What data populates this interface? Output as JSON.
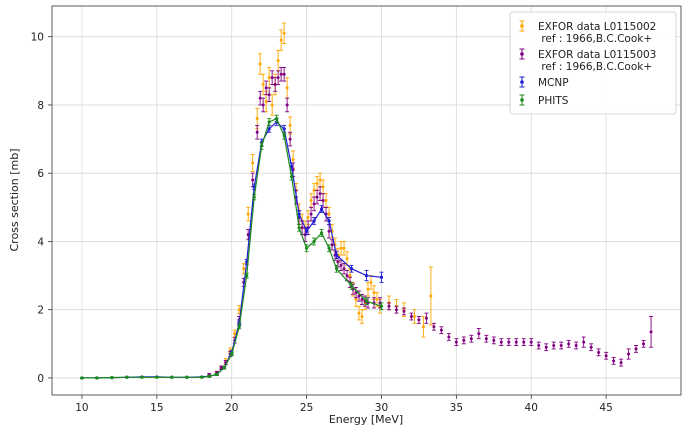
{
  "chart_data": {
    "type": "scatter",
    "title": "",
    "xlabel": "Energy [MeV]",
    "ylabel": "Cross section [mb]",
    "xlim": [
      8,
      50
    ],
    "ylim": [
      -0.5,
      10.9
    ],
    "xticks": [
      10,
      15,
      20,
      25,
      30,
      35,
      40,
      45
    ],
    "yticks": [
      0,
      2,
      4,
      6,
      8,
      10
    ],
    "grid": true,
    "legend_position": "top-right",
    "series": [
      {
        "name": "EXFOR data L0115002\n ref : 1966,B.C.Cook+",
        "color": "#ffa500",
        "style": "errorbar-points",
        "points": [
          [
            18.5,
            0.05,
            0.03
          ],
          [
            19,
            0.15,
            0.05
          ],
          [
            19.3,
            0.3,
            0.05
          ],
          [
            19.6,
            0.5,
            0.07
          ],
          [
            19.9,
            0.8,
            0.08
          ],
          [
            20.2,
            1.3,
            0.1
          ],
          [
            20.5,
            2.0,
            0.12
          ],
          [
            20.8,
            3.2,
            0.15
          ],
          [
            21.1,
            4.8,
            0.2
          ],
          [
            21.4,
            6.3,
            0.25
          ],
          [
            21.7,
            7.6,
            0.3
          ],
          [
            21.9,
            9.2,
            0.3
          ],
          [
            22.1,
            8.6,
            0.3
          ],
          [
            22.3,
            8.1,
            0.3
          ],
          [
            22.5,
            8.8,
            0.3
          ],
          [
            22.7,
            8.0,
            0.3
          ],
          [
            22.9,
            8.6,
            0.3
          ],
          [
            23.1,
            9.3,
            0.3
          ],
          [
            23.3,
            9.9,
            0.3
          ],
          [
            23.5,
            10.1,
            0.3
          ],
          [
            23.7,
            8.5,
            0.3
          ],
          [
            23.9,
            7.4,
            0.25
          ],
          [
            24.1,
            6.4,
            0.25
          ],
          [
            24.3,
            5.5,
            0.2
          ],
          [
            24.5,
            4.9,
            0.2
          ],
          [
            24.7,
            4.6,
            0.2
          ],
          [
            24.9,
            4.4,
            0.2
          ],
          [
            25.1,
            4.7,
            0.2
          ],
          [
            25.3,
            5.2,
            0.2
          ],
          [
            25.5,
            5.5,
            0.2
          ],
          [
            25.7,
            5.7,
            0.2
          ],
          [
            25.9,
            5.8,
            0.2
          ],
          [
            26.1,
            5.6,
            0.2
          ],
          [
            26.3,
            5.2,
            0.2
          ],
          [
            26.5,
            4.8,
            0.2
          ],
          [
            26.7,
            4.3,
            0.2
          ],
          [
            26.9,
            3.9,
            0.2
          ],
          [
            27.1,
            3.6,
            0.2
          ],
          [
            27.3,
            3.8,
            0.2
          ],
          [
            27.5,
            3.8,
            0.2
          ],
          [
            27.7,
            3.5,
            0.2
          ],
          [
            27.9,
            3.0,
            0.2
          ],
          [
            28.1,
            2.6,
            0.2
          ],
          [
            28.3,
            2.3,
            0.2
          ],
          [
            28.5,
            1.9,
            0.2
          ],
          [
            28.7,
            1.8,
            0.2
          ],
          [
            28.9,
            2.2,
            0.2
          ],
          [
            29.1,
            2.6,
            0.2
          ],
          [
            29.3,
            2.8,
            0.2
          ],
          [
            29.5,
            2.5,
            0.2
          ],
          [
            29.7,
            2.3,
            0.2
          ],
          [
            29.9,
            2.1,
            0.2
          ],
          [
            30.5,
            2.2,
            0.2
          ],
          [
            31,
            2.1,
            0.2
          ],
          [
            31.5,
            2.0,
            0.2
          ],
          [
            32.2,
            1.8,
            0.2
          ],
          [
            32.8,
            1.5,
            0.3
          ],
          [
            33.3,
            2.4,
            0.85
          ]
        ]
      },
      {
        "name": "EXFOR data L0115003\n ref : 1966,B.C.Cook+",
        "color": "#800080",
        "style": "errorbar-points",
        "points": [
          [
            18.5,
            0.1,
            0.03
          ],
          [
            19,
            0.15,
            0.04
          ],
          [
            19.3,
            0.3,
            0.05
          ],
          [
            19.6,
            0.45,
            0.06
          ],
          [
            19.9,
            0.7,
            0.07
          ],
          [
            20.2,
            1.1,
            0.08
          ],
          [
            20.5,
            1.7,
            0.1
          ],
          [
            20.8,
            2.8,
            0.12
          ],
          [
            21.1,
            4.2,
            0.15
          ],
          [
            21.4,
            5.8,
            0.2
          ],
          [
            21.7,
            7.2,
            0.2
          ],
          [
            21.9,
            8.2,
            0.2
          ],
          [
            22.1,
            8.0,
            0.2
          ],
          [
            22.3,
            8.5,
            0.2
          ],
          [
            22.5,
            8.3,
            0.2
          ],
          [
            22.7,
            8.8,
            0.2
          ],
          [
            22.9,
            8.6,
            0.2
          ],
          [
            23.1,
            8.8,
            0.2
          ],
          [
            23.3,
            8.9,
            0.2
          ],
          [
            23.5,
            8.9,
            0.2
          ],
          [
            23.7,
            8.0,
            0.2
          ],
          [
            23.9,
            7.0,
            0.2
          ],
          [
            24.1,
            6.1,
            0.2
          ],
          [
            24.3,
            5.3,
            0.2
          ],
          [
            24.5,
            4.7,
            0.2
          ],
          [
            24.7,
            4.4,
            0.2
          ],
          [
            24.9,
            4.2,
            0.2
          ],
          [
            25.1,
            4.4,
            0.2
          ],
          [
            25.3,
            4.8,
            0.2
          ],
          [
            25.5,
            5.1,
            0.2
          ],
          [
            25.7,
            5.3,
            0.2
          ],
          [
            25.9,
            5.4,
            0.2
          ],
          [
            26.1,
            5.2,
            0.2
          ],
          [
            26.3,
            4.8,
            0.2
          ],
          [
            26.5,
            4.3,
            0.2
          ],
          [
            26.7,
            3.9,
            0.15
          ],
          [
            26.9,
            3.6,
            0.15
          ],
          [
            27.1,
            3.4,
            0.15
          ],
          [
            27.3,
            3.3,
            0.15
          ],
          [
            27.5,
            3.2,
            0.15
          ],
          [
            27.7,
            3.0,
            0.15
          ],
          [
            27.9,
            2.8,
            0.15
          ],
          [
            28.1,
            2.6,
            0.15
          ],
          [
            28.3,
            2.5,
            0.15
          ],
          [
            28.5,
            2.4,
            0.15
          ],
          [
            28.7,
            2.3,
            0.15
          ],
          [
            28.9,
            2.25,
            0.15
          ],
          [
            29.1,
            2.2,
            0.15
          ],
          [
            29.5,
            2.2,
            0.15
          ],
          [
            29.9,
            2.2,
            0.15
          ],
          [
            30.5,
            2.1,
            0.1
          ],
          [
            31,
            2.0,
            0.1
          ],
          [
            31.5,
            1.95,
            0.1
          ],
          [
            32,
            1.8,
            0.1
          ],
          [
            32.5,
            1.7,
            0.1
          ],
          [
            33,
            1.75,
            0.15
          ],
          [
            33.5,
            1.5,
            0.1
          ],
          [
            34,
            1.4,
            0.1
          ],
          [
            34.5,
            1.2,
            0.1
          ],
          [
            35,
            1.05,
            0.1
          ],
          [
            35.5,
            1.1,
            0.1
          ],
          [
            36,
            1.15,
            0.1
          ],
          [
            36.5,
            1.3,
            0.15
          ],
          [
            37,
            1.15,
            0.1
          ],
          [
            37.5,
            1.1,
            0.1
          ],
          [
            38,
            1.05,
            0.1
          ],
          [
            38.5,
            1.05,
            0.1
          ],
          [
            39,
            1.05,
            0.1
          ],
          [
            39.5,
            1.05,
            0.1
          ],
          [
            40,
            1.05,
            0.1
          ],
          [
            40.5,
            0.95,
            0.1
          ],
          [
            41,
            0.9,
            0.1
          ],
          [
            41.5,
            0.95,
            0.1
          ],
          [
            42,
            0.95,
            0.1
          ],
          [
            42.5,
            1.0,
            0.1
          ],
          [
            43,
            0.95,
            0.1
          ],
          [
            43.5,
            1.05,
            0.15
          ],
          [
            44,
            0.9,
            0.1
          ],
          [
            44.5,
            0.75,
            0.1
          ],
          [
            45,
            0.65,
            0.1
          ],
          [
            45.5,
            0.5,
            0.1
          ],
          [
            46,
            0.45,
            0.1
          ],
          [
            46.5,
            0.7,
            0.15
          ],
          [
            47,
            0.85,
            0.1
          ],
          [
            47.5,
            1.0,
            0.1
          ],
          [
            48,
            1.35,
            0.45
          ]
        ]
      },
      {
        "name": "MCNP",
        "color": "#1f1fd6",
        "style": "line-errorbar",
        "points": [
          [
            10,
            0.0,
            0.01
          ],
          [
            11,
            0.0,
            0.01
          ],
          [
            12,
            0.01,
            0.01
          ],
          [
            13,
            0.02,
            0.01
          ],
          [
            14,
            0.03,
            0.01
          ],
          [
            15,
            0.03,
            0.01
          ],
          [
            16,
            0.02,
            0.01
          ],
          [
            17,
            0.02,
            0.01
          ],
          [
            18,
            0.03,
            0.01
          ],
          [
            18.5,
            0.05,
            0.02
          ],
          [
            19,
            0.1,
            0.03
          ],
          [
            19.5,
            0.3,
            0.04
          ],
          [
            20,
            0.75,
            0.05
          ],
          [
            20.5,
            1.6,
            0.06
          ],
          [
            21,
            3.4,
            0.07
          ],
          [
            21.5,
            5.6,
            0.08
          ],
          [
            22,
            6.9,
            0.1
          ],
          [
            22.5,
            7.3,
            0.1
          ],
          [
            23,
            7.5,
            0.1
          ],
          [
            23.5,
            7.3,
            0.1
          ],
          [
            24,
            6.2,
            0.1
          ],
          [
            24.5,
            4.8,
            0.1
          ],
          [
            25,
            4.3,
            0.1
          ],
          [
            25.5,
            4.6,
            0.1
          ],
          [
            26,
            4.95,
            0.1
          ],
          [
            26.5,
            4.6,
            0.1
          ],
          [
            27,
            3.6,
            0.1
          ],
          [
            28,
            3.2,
            0.1
          ],
          [
            29,
            3.0,
            0.15
          ],
          [
            30,
            2.95,
            0.15
          ]
        ]
      },
      {
        "name": "PHITS",
        "color": "#1a8a1a",
        "style": "line-errorbar",
        "points": [
          [
            10,
            0.0,
            0.01
          ],
          [
            11,
            0.0,
            0.01
          ],
          [
            12,
            0.01,
            0.01
          ],
          [
            13,
            0.02,
            0.01
          ],
          [
            14,
            0.02,
            0.01
          ],
          [
            15,
            0.02,
            0.01
          ],
          [
            16,
            0.02,
            0.01
          ],
          [
            17,
            0.02,
            0.01
          ],
          [
            18,
            0.02,
            0.01
          ],
          [
            18.5,
            0.05,
            0.02
          ],
          [
            19,
            0.1,
            0.03
          ],
          [
            19.5,
            0.3,
            0.04
          ],
          [
            20,
            0.7,
            0.05
          ],
          [
            20.5,
            1.5,
            0.06
          ],
          [
            21,
            3.0,
            0.07
          ],
          [
            21.5,
            5.3,
            0.08
          ],
          [
            22,
            6.8,
            0.1
          ],
          [
            22.5,
            7.5,
            0.1
          ],
          [
            23,
            7.6,
            0.1
          ],
          [
            23.5,
            7.1,
            0.1
          ],
          [
            24,
            5.9,
            0.1
          ],
          [
            24.5,
            4.4,
            0.1
          ],
          [
            25,
            3.8,
            0.1
          ],
          [
            25.5,
            4.0,
            0.1
          ],
          [
            26,
            4.25,
            0.1
          ],
          [
            26.5,
            3.8,
            0.1
          ],
          [
            27,
            3.2,
            0.1
          ],
          [
            28,
            2.7,
            0.1
          ],
          [
            29,
            2.25,
            0.1
          ],
          [
            30,
            2.1,
            0.1
          ]
        ]
      }
    ]
  }
}
